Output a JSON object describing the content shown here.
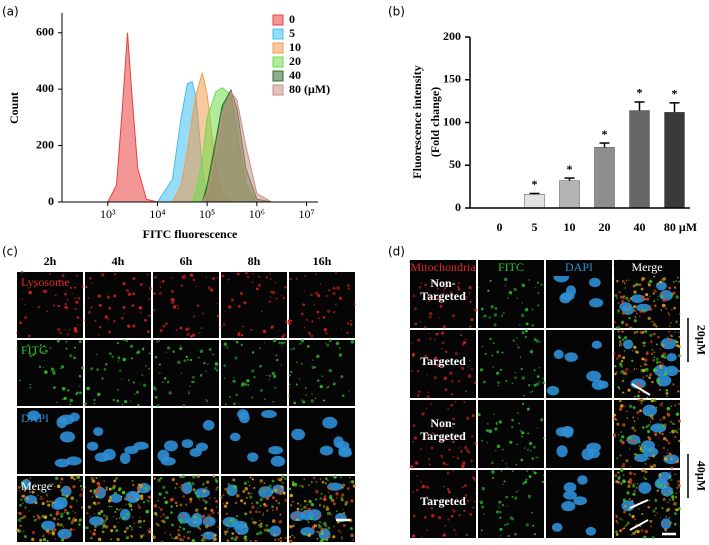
{
  "chart_data": [
    {
      "type": "density",
      "panel": "(a)",
      "xlabel": "FITC fluorescence",
      "ylabel": "Count",
      "xscale": "log",
      "x": [
        500,
        1000,
        1500,
        2000,
        2500,
        3000,
        4000,
        6000,
        10000,
        20000,
        30000,
        40000,
        50000,
        60000,
        80000,
        100000,
        150000,
        200000,
        300000,
        400000,
        600000,
        1000000,
        2000000
      ],
      "series": [
        {
          "name": "0",
          "color": "#e8403f",
          "values": [
            0,
            0,
            60,
            350,
            600,
            400,
            120,
            10,
            0,
            0,
            0,
            0,
            0,
            0,
            0,
            0,
            0,
            0,
            0,
            0,
            0,
            0,
            0
          ]
        },
        {
          "name": "5",
          "color": "#3fbfef",
          "values": [
            0,
            0,
            0,
            0,
            0,
            0,
            0,
            0,
            0,
            80,
            300,
            420,
            426,
            370,
            120,
            20,
            0,
            0,
            0,
            0,
            0,
            0,
            0
          ]
        },
        {
          "name": "10",
          "color": "#f39a4f",
          "values": [
            0,
            0,
            0,
            0,
            0,
            0,
            0,
            0,
            0,
            0,
            60,
            180,
            300,
            380,
            458,
            380,
            120,
            30,
            0,
            0,
            0,
            0,
            0
          ]
        },
        {
          "name": "20",
          "color": "#6fdc4a",
          "values": [
            0,
            0,
            0,
            0,
            0,
            0,
            0,
            0,
            0,
            0,
            0,
            0,
            0,
            40,
            150,
            300,
            390,
            405,
            380,
            250,
            60,
            0,
            0
          ]
        },
        {
          "name": "40",
          "color": "#2f6b2a",
          "values": [
            0,
            0,
            0,
            0,
            0,
            0,
            0,
            0,
            0,
            0,
            0,
            0,
            0,
            0,
            0,
            60,
            220,
            340,
            397,
            330,
            120,
            10,
            0
          ]
        },
        {
          "name": "80 (μM)",
          "color": "#c98f86",
          "values": [
            0,
            0,
            0,
            0,
            0,
            0,
            0,
            0,
            0,
            0,
            0,
            0,
            0,
            0,
            0,
            30,
            180,
            310,
            390,
            360,
            200,
            30,
            0
          ]
        }
      ],
      "xlim": [
        120,
        17000000
      ],
      "xticks": [
        {
          "value": 1000,
          "label": "10³"
        },
        {
          "value": 10000,
          "label": "10⁴"
        },
        {
          "value": 100000,
          "label": "10⁵"
        },
        {
          "value": 1000000,
          "label": "10⁶"
        },
        {
          "value": 10000000,
          "label": "10⁷"
        }
      ],
      "ylim": [
        0,
        670
      ],
      "yticks": [
        0,
        200,
        400,
        600
      ],
      "legend": "top-right"
    },
    {
      "type": "bar",
      "panel": "(b)",
      "ylabel": [
        "Fluorescence intensity",
        "(Fold  change)"
      ],
      "categories": [
        "0",
        "5",
        "10",
        "20",
        "40",
        "80 μM"
      ],
      "values": [
        0,
        16,
        32,
        71,
        114,
        112
      ],
      "errors": [
        0,
        1,
        3,
        5,
        10,
        11
      ],
      "colors": [
        "#ffffff",
        "#e2e2e2",
        "#b4b4b4",
        "#8e8e8e",
        "#676767",
        "#3a3a3a"
      ],
      "significant": [
        false,
        true,
        true,
        true,
        true,
        true
      ],
      "significance_label": "*",
      "ylim": [
        0,
        200
      ],
      "yticks": [
        0,
        50,
        100,
        150,
        200
      ]
    }
  ],
  "panel_c": {
    "label": "(c)",
    "columns": [
      "2h",
      "4h",
      "6h",
      "8h",
      "16h"
    ],
    "rows": [
      "Lysosome",
      "FITC",
      "DAPI",
      "Merge"
    ]
  },
  "panel_d": {
    "label": "(d)",
    "columns": [
      "Mitochondria",
      "FITC",
      "DAPI",
      "Merge"
    ],
    "rows": [
      [
        "Non-",
        "Targeted"
      ],
      [
        "Targeted"
      ],
      [
        "Non-",
        "Targeted"
      ],
      [
        "Targeted"
      ]
    ],
    "concentrations": [
      "20μM",
      "40μM"
    ]
  }
}
